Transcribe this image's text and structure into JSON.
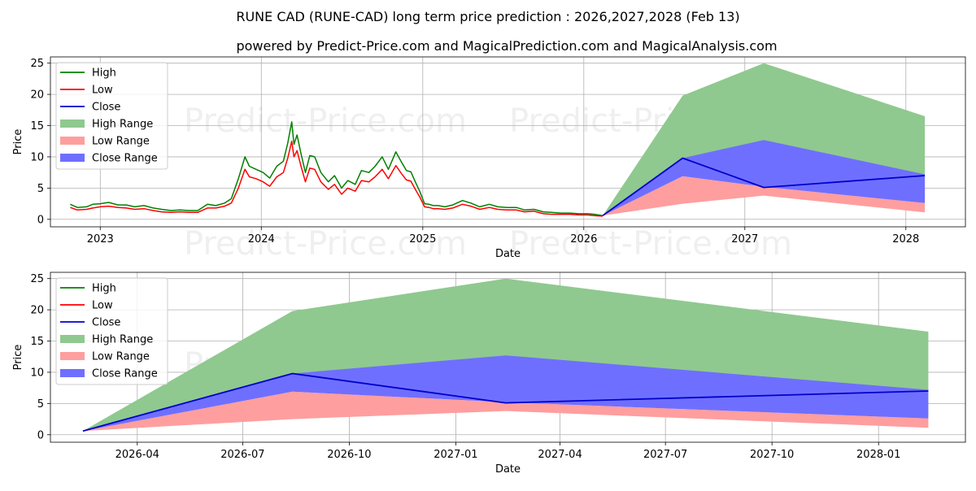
{
  "chart_title": "RUNE CAD (RUNE-CAD) long term price prediction : 2026,2027,2028 (Feb 13)",
  "chart_subtitle": "powered by Predict-Price.com and MagicalPrediction.com and MagicalAnalysis.com",
  "watermark": "Predict-Price.com",
  "colors": {
    "high": "#008000",
    "low": "#ff0000",
    "close": "#0000cc",
    "high_range": "#8fc98f",
    "low_range": "#ff9e9e",
    "close_range": "#6f6fff"
  },
  "chart_data": [
    {
      "type": "line",
      "title": "RUNE CAD (RUNE-CAD) long term price prediction : 2026,2027,2028 (Feb 13)",
      "xlabel": "Date",
      "ylabel": "Price",
      "xlim": [
        "2022-09-10",
        "2028-05-15"
      ],
      "ylim": [
        -1.2,
        26
      ],
      "xticks": [
        {
          "date": "2023-01-01",
          "label": "2023"
        },
        {
          "date": "2024-01-01",
          "label": "2024"
        },
        {
          "date": "2025-01-01",
          "label": "2025"
        },
        {
          "date": "2026-01-01",
          "label": "2026"
        },
        {
          "date": "2027-01-01",
          "label": "2027"
        },
        {
          "date": "2028-01-01",
          "label": "2028"
        }
      ],
      "yticks": [
        0,
        5,
        10,
        15,
        20,
        25
      ],
      "grid": true,
      "legend_position": "top-left",
      "legend": [
        "High",
        "Low",
        "Close",
        "High Range",
        "Low Range",
        "Close Range"
      ],
      "history_x": [
        "2022-10-25",
        "2022-11-10",
        "2022-12-01",
        "2022-12-15",
        "2023-01-01",
        "2023-01-20",
        "2023-02-10",
        "2023-03-01",
        "2023-03-20",
        "2023-04-10",
        "2023-05-01",
        "2023-05-20",
        "2023-06-10",
        "2023-07-01",
        "2023-07-20",
        "2023-08-10",
        "2023-09-01",
        "2023-09-20",
        "2023-10-10",
        "2023-10-25",
        "2023-11-10",
        "2023-11-25",
        "2023-12-05",
        "2023-12-20",
        "2024-01-05",
        "2024-01-20",
        "2024-02-05",
        "2024-02-20",
        "2024-03-01",
        "2024-03-10",
        "2024-03-15",
        "2024-03-22",
        "2024-03-31",
        "2024-04-10",
        "2024-04-20",
        "2024-05-01",
        "2024-05-15",
        "2024-06-01",
        "2024-06-15",
        "2024-07-01",
        "2024-07-15",
        "2024-08-01",
        "2024-08-15",
        "2024-09-01",
        "2024-09-15",
        "2024-10-01",
        "2024-10-15",
        "2024-11-01",
        "2024-11-15",
        "2024-11-25",
        "2024-12-05",
        "2024-12-15",
        "2024-12-25",
        "2025-01-05",
        "2025-01-15",
        "2025-01-25",
        "2025-02-05",
        "2025-02-20",
        "2025-03-10",
        "2025-04-01",
        "2025-04-20",
        "2025-05-10",
        "2025-06-01",
        "2025-06-20",
        "2025-07-10",
        "2025-08-01",
        "2025-08-20",
        "2025-09-10",
        "2025-10-01",
        "2025-10-20",
        "2025-11-10",
        "2025-12-01",
        "2025-12-20",
        "2026-01-10",
        "2026-01-25",
        "2026-02-13"
      ],
      "history_high": [
        2.4,
        1.9,
        2.0,
        2.4,
        2.5,
        2.7,
        2.3,
        2.3,
        2.0,
        2.2,
        1.8,
        1.6,
        1.4,
        1.5,
        1.4,
        1.4,
        2.4,
        2.2,
        2.6,
        3.3,
        6.5,
        10.0,
        8.5,
        8.0,
        7.5,
        6.6,
        8.5,
        9.3,
        12.2,
        15.6,
        12.0,
        13.5,
        10.5,
        7.5,
        10.2,
        10.0,
        7.5,
        6.0,
        7.0,
        5.0,
        6.2,
        5.6,
        7.8,
        7.5,
        8.5,
        10.0,
        8.0,
        10.8,
        9.0,
        7.8,
        7.6,
        6.0,
        4.5,
        2.5,
        2.4,
        2.2,
        2.2,
        2.0,
        2.3,
        3.0,
        2.6,
        2.0,
        2.4,
        2.0,
        1.9,
        1.9,
        1.5,
        1.6,
        1.2,
        1.1,
        1.0,
        1.0,
        0.9,
        0.9,
        0.8,
        0.6
      ],
      "history_low": [
        1.9,
        1.5,
        1.6,
        1.8,
        2.0,
        2.1,
        1.9,
        1.8,
        1.6,
        1.7,
        1.4,
        1.2,
        1.1,
        1.2,
        1.1,
        1.1,
        1.8,
        1.8,
        2.1,
        2.6,
        5.0,
        8.0,
        6.8,
        6.5,
        6.0,
        5.3,
        6.8,
        7.5,
        9.8,
        12.5,
        10.0,
        11.0,
        8.5,
        6.0,
        8.2,
        8.0,
        6.0,
        4.8,
        5.6,
        4.0,
        5.0,
        4.5,
        6.2,
        6.0,
        6.8,
        8.0,
        6.5,
        8.6,
        7.2,
        6.3,
        6.1,
        4.8,
        3.6,
        2.0,
        1.9,
        1.7,
        1.7,
        1.6,
        1.8,
        2.4,
        2.1,
        1.6,
        1.9,
        1.6,
        1.5,
        1.5,
        1.2,
        1.3,
        0.9,
        0.8,
        0.8,
        0.8,
        0.7,
        0.7,
        0.6,
        0.5
      ],
      "forecast_x": [
        "2026-02-13",
        "2026-08-13",
        "2027-02-13",
        "2028-02-13"
      ],
      "high_range_upper": [
        0.6,
        19.8,
        25.0,
        16.5
      ],
      "high_range_lower": [
        0.6,
        9.8,
        5.2,
        7.0
      ],
      "close_range_upper": [
        0.6,
        9.8,
        12.7,
        7.2
      ],
      "close_range_lower": [
        0.6,
        6.9,
        5.2,
        2.6
      ],
      "low_range_upper": [
        0.6,
        6.9,
        5.2,
        2.6
      ],
      "low_range_lower": [
        0.6,
        2.5,
        3.8,
        1.1
      ],
      "close": [
        0.6,
        9.8,
        5.1,
        7.0
      ]
    },
    {
      "type": "line",
      "xlabel": "Date",
      "ylabel": "Price",
      "xlim": [
        "2026-01-16",
        "2028-03-16"
      ],
      "ylim": [
        -1.2,
        26
      ],
      "xticks": [
        {
          "date": "2026-04-01",
          "label": "2026-04"
        },
        {
          "date": "2026-07-01",
          "label": "2026-07"
        },
        {
          "date": "2026-10-01",
          "label": "2026-10"
        },
        {
          "date": "2027-01-01",
          "label": "2027-01"
        },
        {
          "date": "2027-04-01",
          "label": "2027-04"
        },
        {
          "date": "2027-07-01",
          "label": "2027-07"
        },
        {
          "date": "2027-10-01",
          "label": "2027-10"
        },
        {
          "date": "2028-01-01",
          "label": "2028-01"
        }
      ],
      "yticks": [
        0,
        5,
        10,
        15,
        20,
        25
      ],
      "grid": true,
      "legend_position": "top-left",
      "legend": [
        "High",
        "Low",
        "Close",
        "High Range",
        "Low Range",
        "Close Range"
      ],
      "forecast_x": [
        "2026-02-13",
        "2026-08-13",
        "2027-02-13",
        "2028-02-13"
      ],
      "high_range_upper": [
        0.6,
        19.8,
        25.0,
        16.5
      ],
      "high_range_lower": [
        0.6,
        9.8,
        5.2,
        7.0
      ],
      "close_range_upper": [
        0.6,
        9.8,
        12.7,
        7.2
      ],
      "close_range_lower": [
        0.6,
        6.9,
        5.2,
        2.6
      ],
      "low_range_upper": [
        0.6,
        6.9,
        5.2,
        2.6
      ],
      "low_range_lower": [
        0.6,
        2.5,
        3.8,
        1.1
      ],
      "close": [
        0.6,
        9.8,
        5.1,
        7.0
      ]
    }
  ]
}
